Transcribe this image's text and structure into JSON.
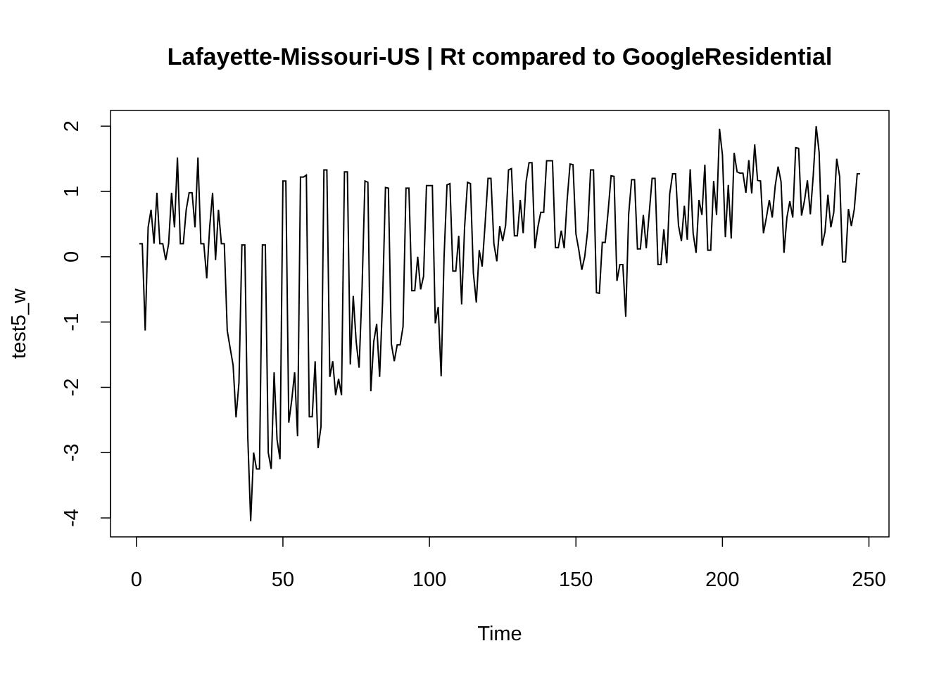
{
  "chart_data": {
    "type": "line",
    "title": "Lafayette-Missouri-US | Rt compared to GoogleResidential",
    "x_label": "Time",
    "y_label": "test5_w",
    "x": [
      1,
      2,
      3,
      4,
      5,
      6,
      7,
      8,
      9,
      10,
      11,
      12,
      13,
      14,
      15,
      16,
      17,
      18,
      19,
      20,
      21,
      22,
      23,
      24,
      25,
      26,
      27,
      28,
      29,
      30,
      31,
      32,
      33,
      34,
      35,
      36,
      37,
      38,
      39,
      40,
      41,
      42,
      43,
      44,
      45,
      46,
      47,
      48,
      49,
      50,
      51,
      52,
      53,
      54,
      55,
      56,
      57,
      58,
      59,
      60,
      61,
      62,
      63,
      64,
      65,
      66,
      67,
      68,
      69,
      70,
      71,
      72,
      73,
      74,
      75,
      76,
      77,
      78,
      79,
      80,
      81,
      82,
      83,
      84,
      85,
      86,
      87,
      88,
      89,
      90,
      91,
      92,
      93,
      94,
      95,
      96,
      97,
      98,
      99,
      100,
      101,
      102,
      103,
      104,
      105,
      106,
      107,
      108,
      109,
      110,
      111,
      112,
      113,
      114,
      115,
      116,
      117,
      118,
      119,
      120,
      121,
      122,
      123,
      124,
      125,
      126,
      127,
      128,
      129,
      130,
      131,
      132,
      133,
      134,
      135,
      136,
      137,
      138,
      139,
      140,
      141,
      142,
      143,
      144,
      145,
      146,
      147,
      148,
      149,
      150,
      151,
      152,
      153,
      154,
      155,
      156,
      157,
      158,
      159,
      160,
      161,
      162,
      163,
      164,
      165,
      166,
      167,
      168,
      169,
      170,
      171,
      172,
      173,
      174,
      175,
      176,
      177,
      178,
      179,
      180,
      181,
      182,
      183,
      184,
      185,
      186,
      187,
      188,
      189,
      190,
      191,
      192,
      193,
      194,
      195,
      196,
      197,
      198,
      199,
      200,
      201,
      202,
      203,
      204,
      205,
      206,
      207,
      208,
      209,
      210,
      211,
      212,
      213,
      214,
      215,
      216,
      217,
      218,
      219,
      220,
      221,
      222,
      223,
      224,
      225,
      226,
      227,
      228,
      229,
      230,
      231,
      232,
      233,
      234,
      235,
      236,
      237,
      238,
      239,
      240,
      241,
      242,
      243,
      244,
      245,
      246,
      247
    ],
    "series": [
      {
        "color": "#000000",
        "values": [
          0.2,
          0.2,
          -1.13,
          0.45,
          0.72,
          0.2,
          0.98,
          0.2,
          0.2,
          -0.05,
          0.2,
          0.98,
          0.45,
          1.52,
          0.2,
          0.2,
          0.72,
          0.98,
          0.98,
          0.45,
          1.52,
          0.2,
          0.2,
          -0.33,
          0.45,
          0.98,
          -0.05,
          0.72,
          0.2,
          0.2,
          -1.13,
          -1.4,
          -1.66,
          -2.46,
          -1.93,
          0.18,
          0.18,
          -2.75,
          -4.05,
          -3.0,
          -3.25,
          -3.25,
          0.18,
          0.18,
          -3.0,
          -3.25,
          -1.77,
          -2.8,
          -3.1,
          1.16,
          1.16,
          -2.54,
          -2.2,
          -1.77,
          -2.75,
          1.22,
          1.22,
          1.25,
          -2.45,
          -2.45,
          -1.6,
          -2.93,
          -2.6,
          1.33,
          1.33,
          -1.84,
          -1.6,
          -2.12,
          -1.87,
          -2.12,
          1.3,
          1.3,
          -1.65,
          -0.6,
          -1.3,
          -1.7,
          -0.5,
          1.16,
          1.14,
          -2.06,
          -1.3,
          -1.03,
          -1.84,
          -0.7,
          1.06,
          1.05,
          -1.33,
          -1.6,
          -1.35,
          -1.35,
          -1.07,
          1.05,
          1.05,
          -0.52,
          -0.52,
          0.0,
          -0.5,
          -0.3,
          1.09,
          1.09,
          1.09,
          -1.02,
          -0.77,
          -1.83,
          0.0,
          1.1,
          1.12,
          -0.22,
          -0.22,
          0.32,
          -0.73,
          0.45,
          1.14,
          1.12,
          -0.25,
          -0.7,
          0.1,
          -0.15,
          0.5,
          1.2,
          1.2,
          0.2,
          -0.07,
          0.47,
          0.24,
          0.48,
          1.33,
          1.35,
          0.32,
          0.32,
          0.87,
          0.36,
          1.15,
          1.44,
          1.44,
          0.13,
          0.45,
          0.68,
          0.68,
          1.47,
          1.47,
          1.47,
          0.14,
          0.14,
          0.4,
          0.13,
          0.87,
          1.42,
          1.41,
          0.35,
          0.1,
          -0.2,
          0.0,
          0.4,
          1.33,
          1.33,
          -0.55,
          -0.56,
          0.22,
          0.22,
          0.7,
          1.24,
          1.23,
          -0.37,
          -0.12,
          -0.12,
          -0.92,
          0.65,
          1.18,
          1.18,
          0.12,
          0.12,
          0.64,
          0.13,
          0.66,
          1.2,
          1.2,
          -0.12,
          -0.12,
          0.42,
          -0.1,
          0.96,
          1.27,
          1.27,
          0.48,
          0.24,
          0.78,
          0.26,
          1.34,
          0.36,
          0.06,
          0.87,
          0.64,
          1.41,
          0.1,
          0.1,
          1.16,
          0.64,
          1.96,
          1.56,
          0.3,
          1.1,
          0.28,
          1.59,
          1.3,
          1.28,
          1.28,
          0.98,
          1.48,
          0.97,
          1.72,
          1.17,
          1.16,
          0.36,
          0.6,
          0.87,
          0.6,
          1.08,
          1.38,
          1.15,
          0.06,
          0.6,
          0.85,
          0.6,
          1.67,
          1.66,
          0.63,
          0.86,
          1.17,
          0.65,
          1.25,
          2.0,
          1.6,
          0.17,
          0.38,
          0.95,
          0.45,
          0.68,
          1.5,
          1.23,
          -0.08,
          -0.08,
          0.73,
          0.47,
          0.73,
          1.27,
          1.27
        ]
      }
    ],
    "xlim": [
      -8.84,
      256.84
    ],
    "ylim": [
      -4.29,
      2.24
    ],
    "xticks": [
      0,
      50,
      100,
      150,
      200,
      250
    ],
    "yticks": [
      -4,
      -3,
      -2,
      -1,
      0,
      1,
      2
    ]
  }
}
